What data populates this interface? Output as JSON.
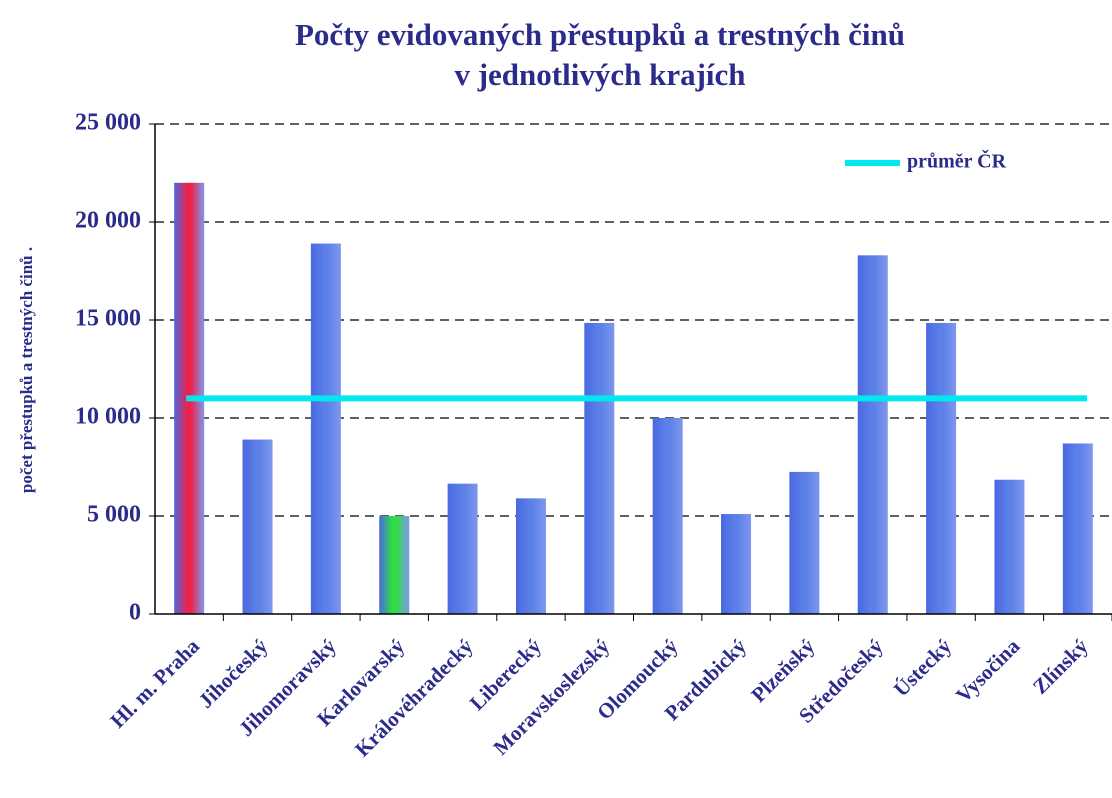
{
  "chart_data": {
    "type": "bar",
    "title": [
      "Počty evidovaných přestupků a trestných činů",
      "v jednotlivých krajích"
    ],
    "ylabel": "počet přestupků a trestných činů .",
    "categories": [
      "Hl. m. Praha",
      "Jihočeský",
      "Jihomoravský",
      "Karlovarský",
      "Královéhradecký",
      "Liberecký",
      "Moravskoslezský",
      "Olomoucký",
      "Pardubický",
      "Plzeňský",
      "Středočeský",
      "Ústecký",
      "Vysočina",
      "Zlínský"
    ],
    "values": [
      22000,
      8900,
      18900,
      5000,
      6650,
      5900,
      14850,
      10000,
      5100,
      7250,
      18300,
      14850,
      6850,
      8700
    ],
    "colors": [
      "#f0204a",
      "#5b80e8",
      "#5b80e8",
      "#30e040",
      "#5b80e8",
      "#5b80e8",
      "#5b80e8",
      "#5b80e8",
      "#5b80e8",
      "#5b80e8",
      "#5b80e8",
      "#5b80e8",
      "#5b80e8",
      "#5b80e8"
    ],
    "average": {
      "name": "průměr ČR",
      "value": 11000,
      "color": "#00e8f0"
    },
    "ylim": [
      0,
      25000
    ],
    "yticks": [
      0,
      {
        "value": 5000,
        "label": "5 000"
      },
      {
        "value": 10000,
        "label": "10 000"
      },
      {
        "value": 15000,
        "label": "15 000"
      },
      {
        "value": 20000,
        "label": "20 000"
      },
      {
        "value": 25000,
        "label": "25 000"
      }
    ],
    "grid": true,
    "legend": "upper right"
  }
}
